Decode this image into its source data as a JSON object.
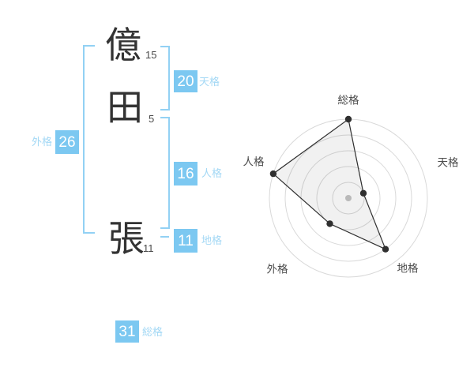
{
  "name_diagram": {
    "kanji": [
      {
        "char": "億",
        "strokes": "15"
      },
      {
        "char": "田",
        "strokes": "5"
      },
      {
        "char": "張",
        "strokes": "11"
      }
    ],
    "tenkaku": {
      "label": "天格",
      "value": "20"
    },
    "jinkaku": {
      "label": "人格",
      "value": "16"
    },
    "chikaku": {
      "label": "地格",
      "value": "11"
    },
    "gaikaku": {
      "label": "外格",
      "value": "26"
    },
    "soukaku": {
      "label": "総格",
      "value": "31"
    }
  },
  "chart_data": {
    "type": "radar",
    "title": "",
    "categories": [
      "総格",
      "天格",
      "地格",
      "外格",
      "人格"
    ],
    "values": [
      5,
      1,
      4,
      2,
      5
    ],
    "max": 5,
    "rings": 5,
    "grid": "circular",
    "legend": false,
    "start_angle_deg": 90,
    "direction": "clockwise",
    "center_dot": true
  },
  "colors": {
    "accent_box_blue": "#7cc8f1",
    "bracket_blue": "#92d1f4",
    "label_blue": "#a3d8f5",
    "kanji_dark": "#333333",
    "chart_line": "#2f2f2f",
    "chart_fill": "rgba(0,0,0,0.055)",
    "ring_gray": "#d9d9d9",
    "center_dot_gray": "#c4c4c4",
    "axis_label_gray": "#4c4c4c"
  }
}
